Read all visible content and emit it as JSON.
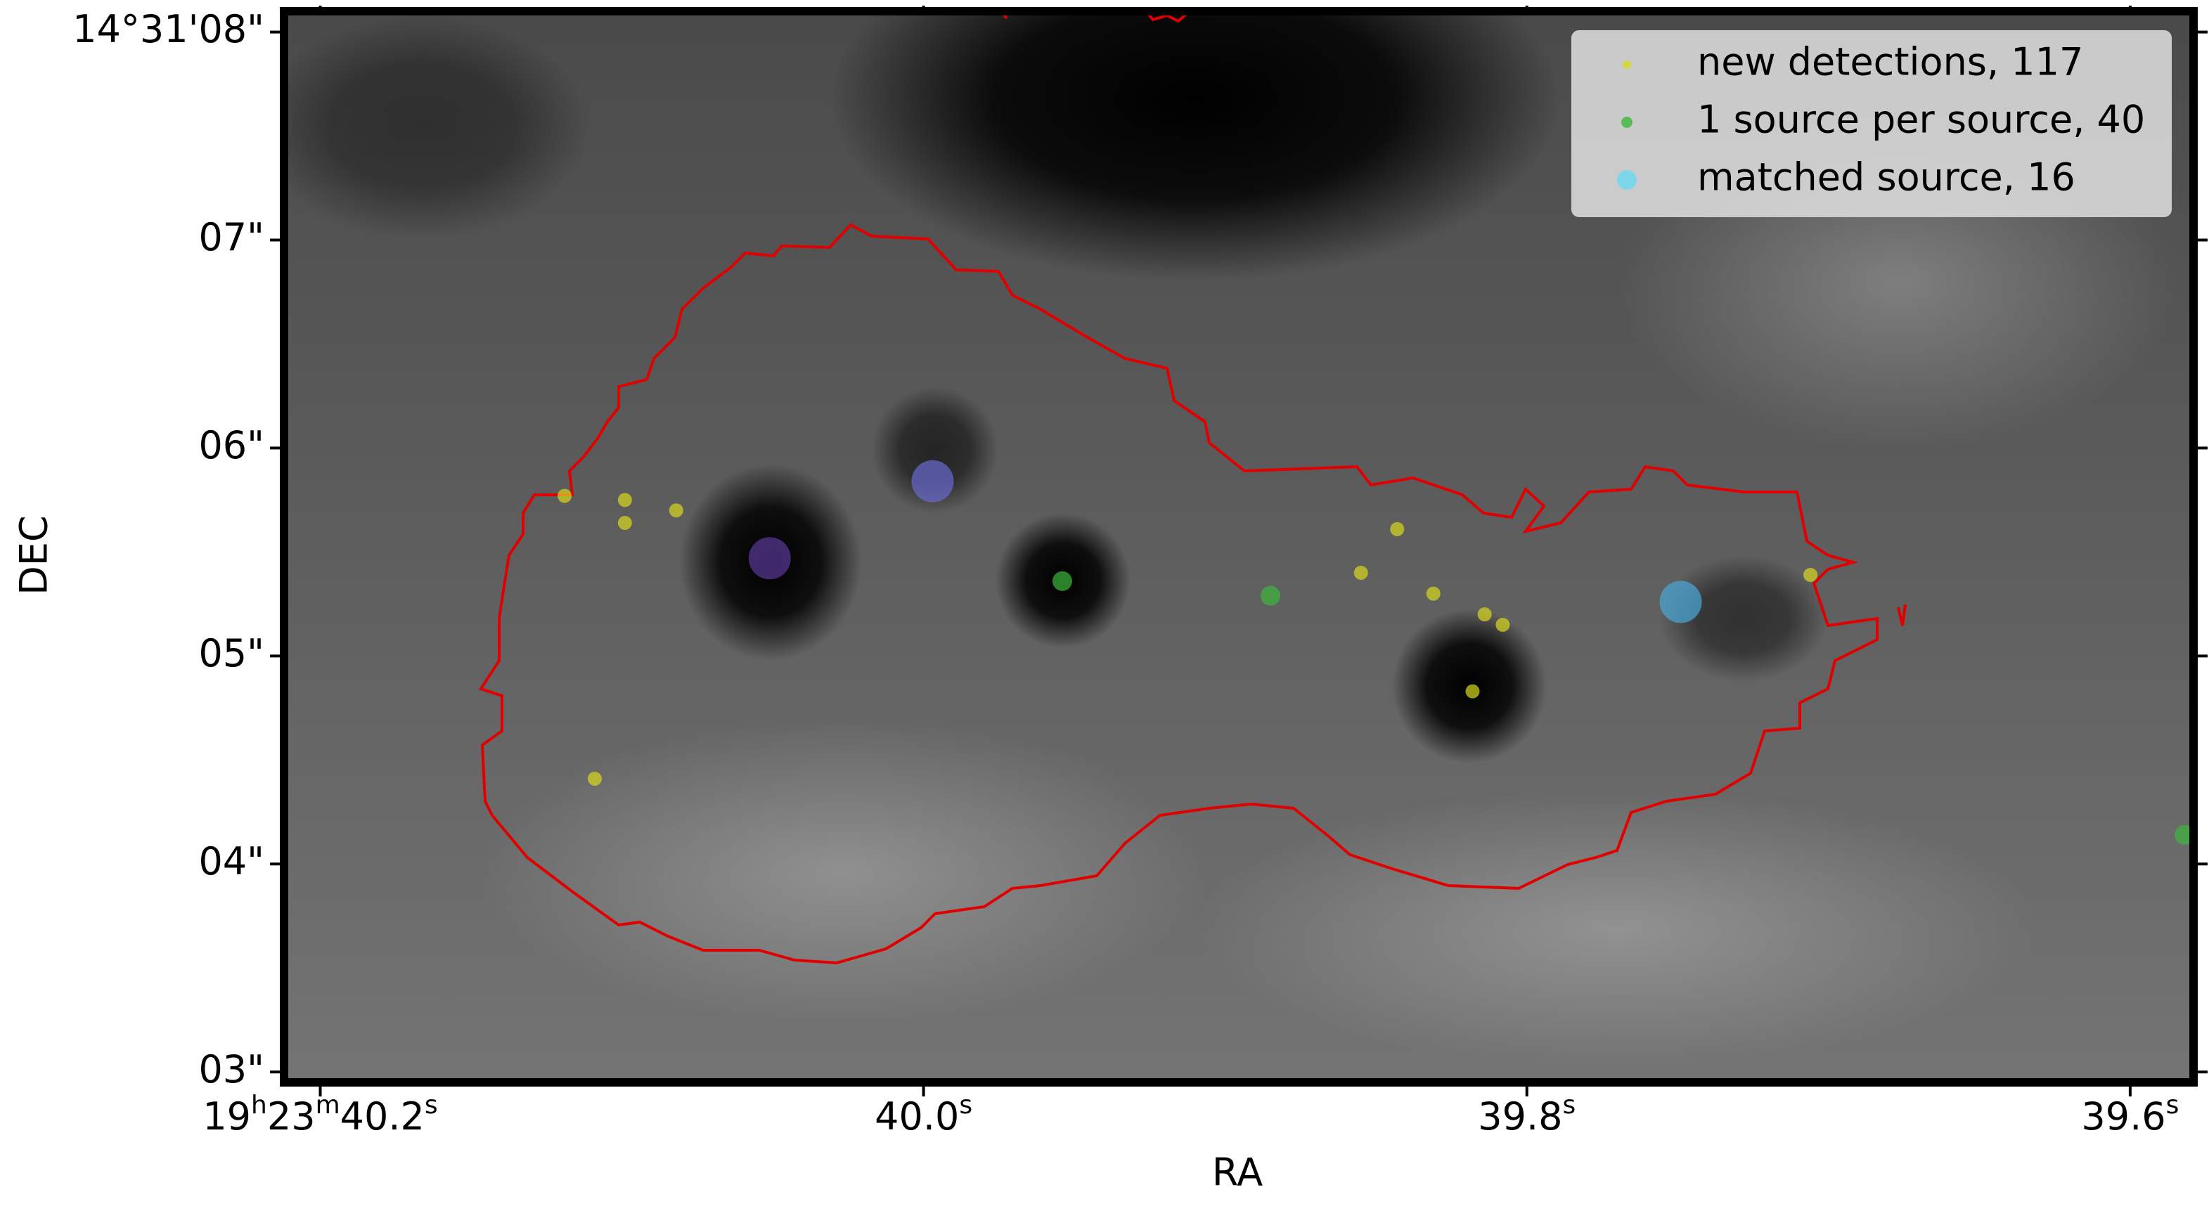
{
  "chart_data": {
    "type": "scatter",
    "xlabel": "RA",
    "ylabel": "DEC",
    "xlim": [
      40.212,
      39.579
    ],
    "ylim": [
      2.95,
      8.1
    ],
    "xticks": [
      {
        "value": 40.2,
        "label": "19h23m40.2s"
      },
      {
        "value": 40.0,
        "label": "40.0s"
      },
      {
        "value": 39.8,
        "label": "39.8s"
      },
      {
        "value": 39.6,
        "label": "39.6s"
      }
    ],
    "yticks": [
      {
        "value": 8,
        "label": "14°31'08\""
      },
      {
        "value": 7,
        "label": "07\""
      },
      {
        "value": 6,
        "label": "06\""
      },
      {
        "value": 5,
        "label": "05\""
      },
      {
        "value": 4,
        "label": "04\""
      },
      {
        "value": 3,
        "label": "03\""
      }
    ],
    "legend": "upper right",
    "series": [
      {
        "name": "new detections, 117",
        "color": "#d8d820",
        "x": [
          40.119,
          40.099,
          40.099,
          40.082,
          40.109,
          39.843,
          39.855,
          39.831,
          39.814,
          39.808,
          39.818,
          39.706
        ],
        "values": [
          5.77,
          5.75,
          5.64,
          5.7,
          4.41,
          5.61,
          5.4,
          5.3,
          5.2,
          5.15,
          4.83,
          5.39
        ]
      },
      {
        "name": "1 source per source, 40",
        "color": "#3cb83c",
        "x": [
          39.954,
          39.885,
          39.582
        ],
        "values": [
          5.36,
          5.29,
          4.14
        ]
      },
      {
        "name": "matched source, 16",
        "color": "#6ad8f0",
        "colors": [
          "#6a6ad0",
          "#5a3a9a",
          "#4aa8d8"
        ],
        "x": [
          39.997,
          40.051,
          39.749
        ],
        "values": [
          5.84,
          5.47,
          5.26
        ]
      }
    ]
  }
}
